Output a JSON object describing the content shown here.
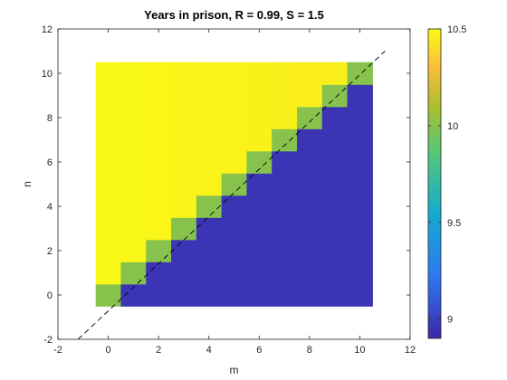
{
  "chart_data": {
    "type": "heatmap",
    "title": "Years in prison, R = 0.99, S = 1.5",
    "xlabel": "m",
    "ylabel": "n",
    "xlim": [
      -2,
      12
    ],
    "ylim": [
      -2,
      12
    ],
    "x_ticks": [
      -2,
      0,
      2,
      4,
      6,
      8,
      10,
      12
    ],
    "y_ticks": [
      -2,
      0,
      2,
      4,
      6,
      8,
      10,
      12
    ],
    "grid": "m and n from 0 to 10 (integer cells)",
    "value_rule": {
      "n_greater_than_m": "approximately 10.45 to 10.5 (yellow), slightly decreasing with m",
      "n_equals_m": "10",
      "n_less_than_m": "approximately 8.95 (dark blue)"
    },
    "reference_line": "dashed line n = m",
    "colorbar": {
      "min": 8.9,
      "max": 10.5,
      "ticks": [
        9,
        9.5,
        10,
        10.5
      ],
      "colormap": "parula"
    }
  }
}
